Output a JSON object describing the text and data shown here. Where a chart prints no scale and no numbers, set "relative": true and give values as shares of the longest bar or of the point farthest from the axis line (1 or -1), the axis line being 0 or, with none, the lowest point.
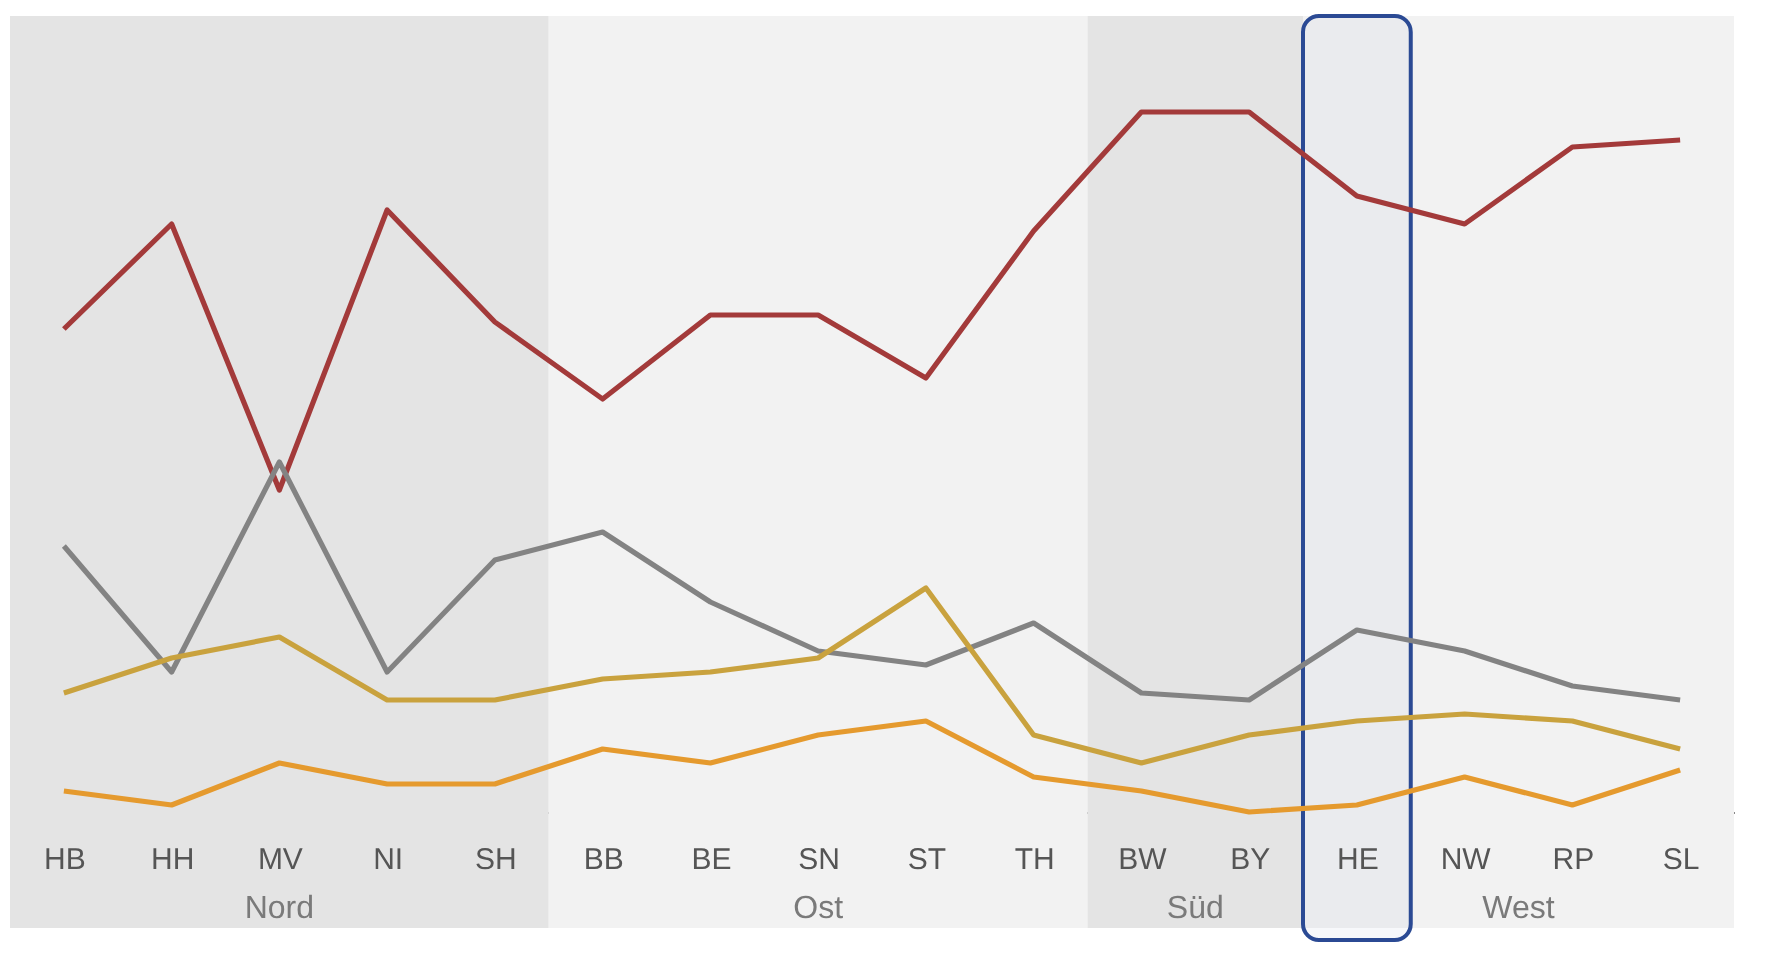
{
  "chart_data": {
    "type": "line",
    "relative": true,
    "grid": false,
    "marker": "none",
    "line_style": "solid",
    "categories": [
      "HB",
      "HH",
      "MV",
      "NI",
      "SH",
      "BB",
      "BE",
      "SN",
      "ST",
      "TH",
      "BW",
      "BY",
      "HE",
      "NW",
      "RP",
      "SL"
    ],
    "series": [
      {
        "color": "#a33a3a",
        "values": [
          0.69,
          0.84,
          0.46,
          0.86,
          0.7,
          0.59,
          0.71,
          0.71,
          0.62,
          0.83,
          1.0,
          1.0,
          0.88,
          0.84,
          0.95,
          0.96
        ]
      },
      {
        "color": "#838383",
        "values": [
          0.38,
          0.2,
          0.5,
          0.2,
          0.36,
          0.4,
          0.3,
          0.23,
          0.21,
          0.27,
          0.17,
          0.16,
          0.26,
          0.23,
          0.18,
          0.16
        ]
      },
      {
        "color": "#c9a23e",
        "values": [
          0.17,
          0.22,
          0.25,
          0.16,
          0.16,
          0.19,
          0.2,
          0.22,
          0.32,
          0.11,
          0.07,
          0.11,
          0.13,
          0.14,
          0.13,
          0.09
        ]
      },
      {
        "color": "#e59a2e",
        "values": [
          0.03,
          0.01,
          0.07,
          0.04,
          0.04,
          0.09,
          0.07,
          0.11,
          0.13,
          0.05,
          0.03,
          0.0,
          0.01,
          0.05,
          0.01,
          0.06
        ]
      }
    ],
    "bands": [
      {
        "axis": "x",
        "from": "HB",
        "to": "SH",
        "label": "Nord",
        "color": "#e4e4e4"
      },
      {
        "axis": "x",
        "from": "BB",
        "to": "TH",
        "label": "Ost",
        "color": "#f2f2f2"
      },
      {
        "axis": "x",
        "from": "BW",
        "to": "BY",
        "label": "Süd",
        "color": "#e4e4e4"
      },
      {
        "axis": "x",
        "from": "HE",
        "to": "SL",
        "label": "West",
        "color": "#f2f2f2"
      },
      {
        "axis": "x",
        "from": "HE",
        "to": "HE",
        "label": null,
        "color": "#2b4a94"
      }
    ]
  }
}
